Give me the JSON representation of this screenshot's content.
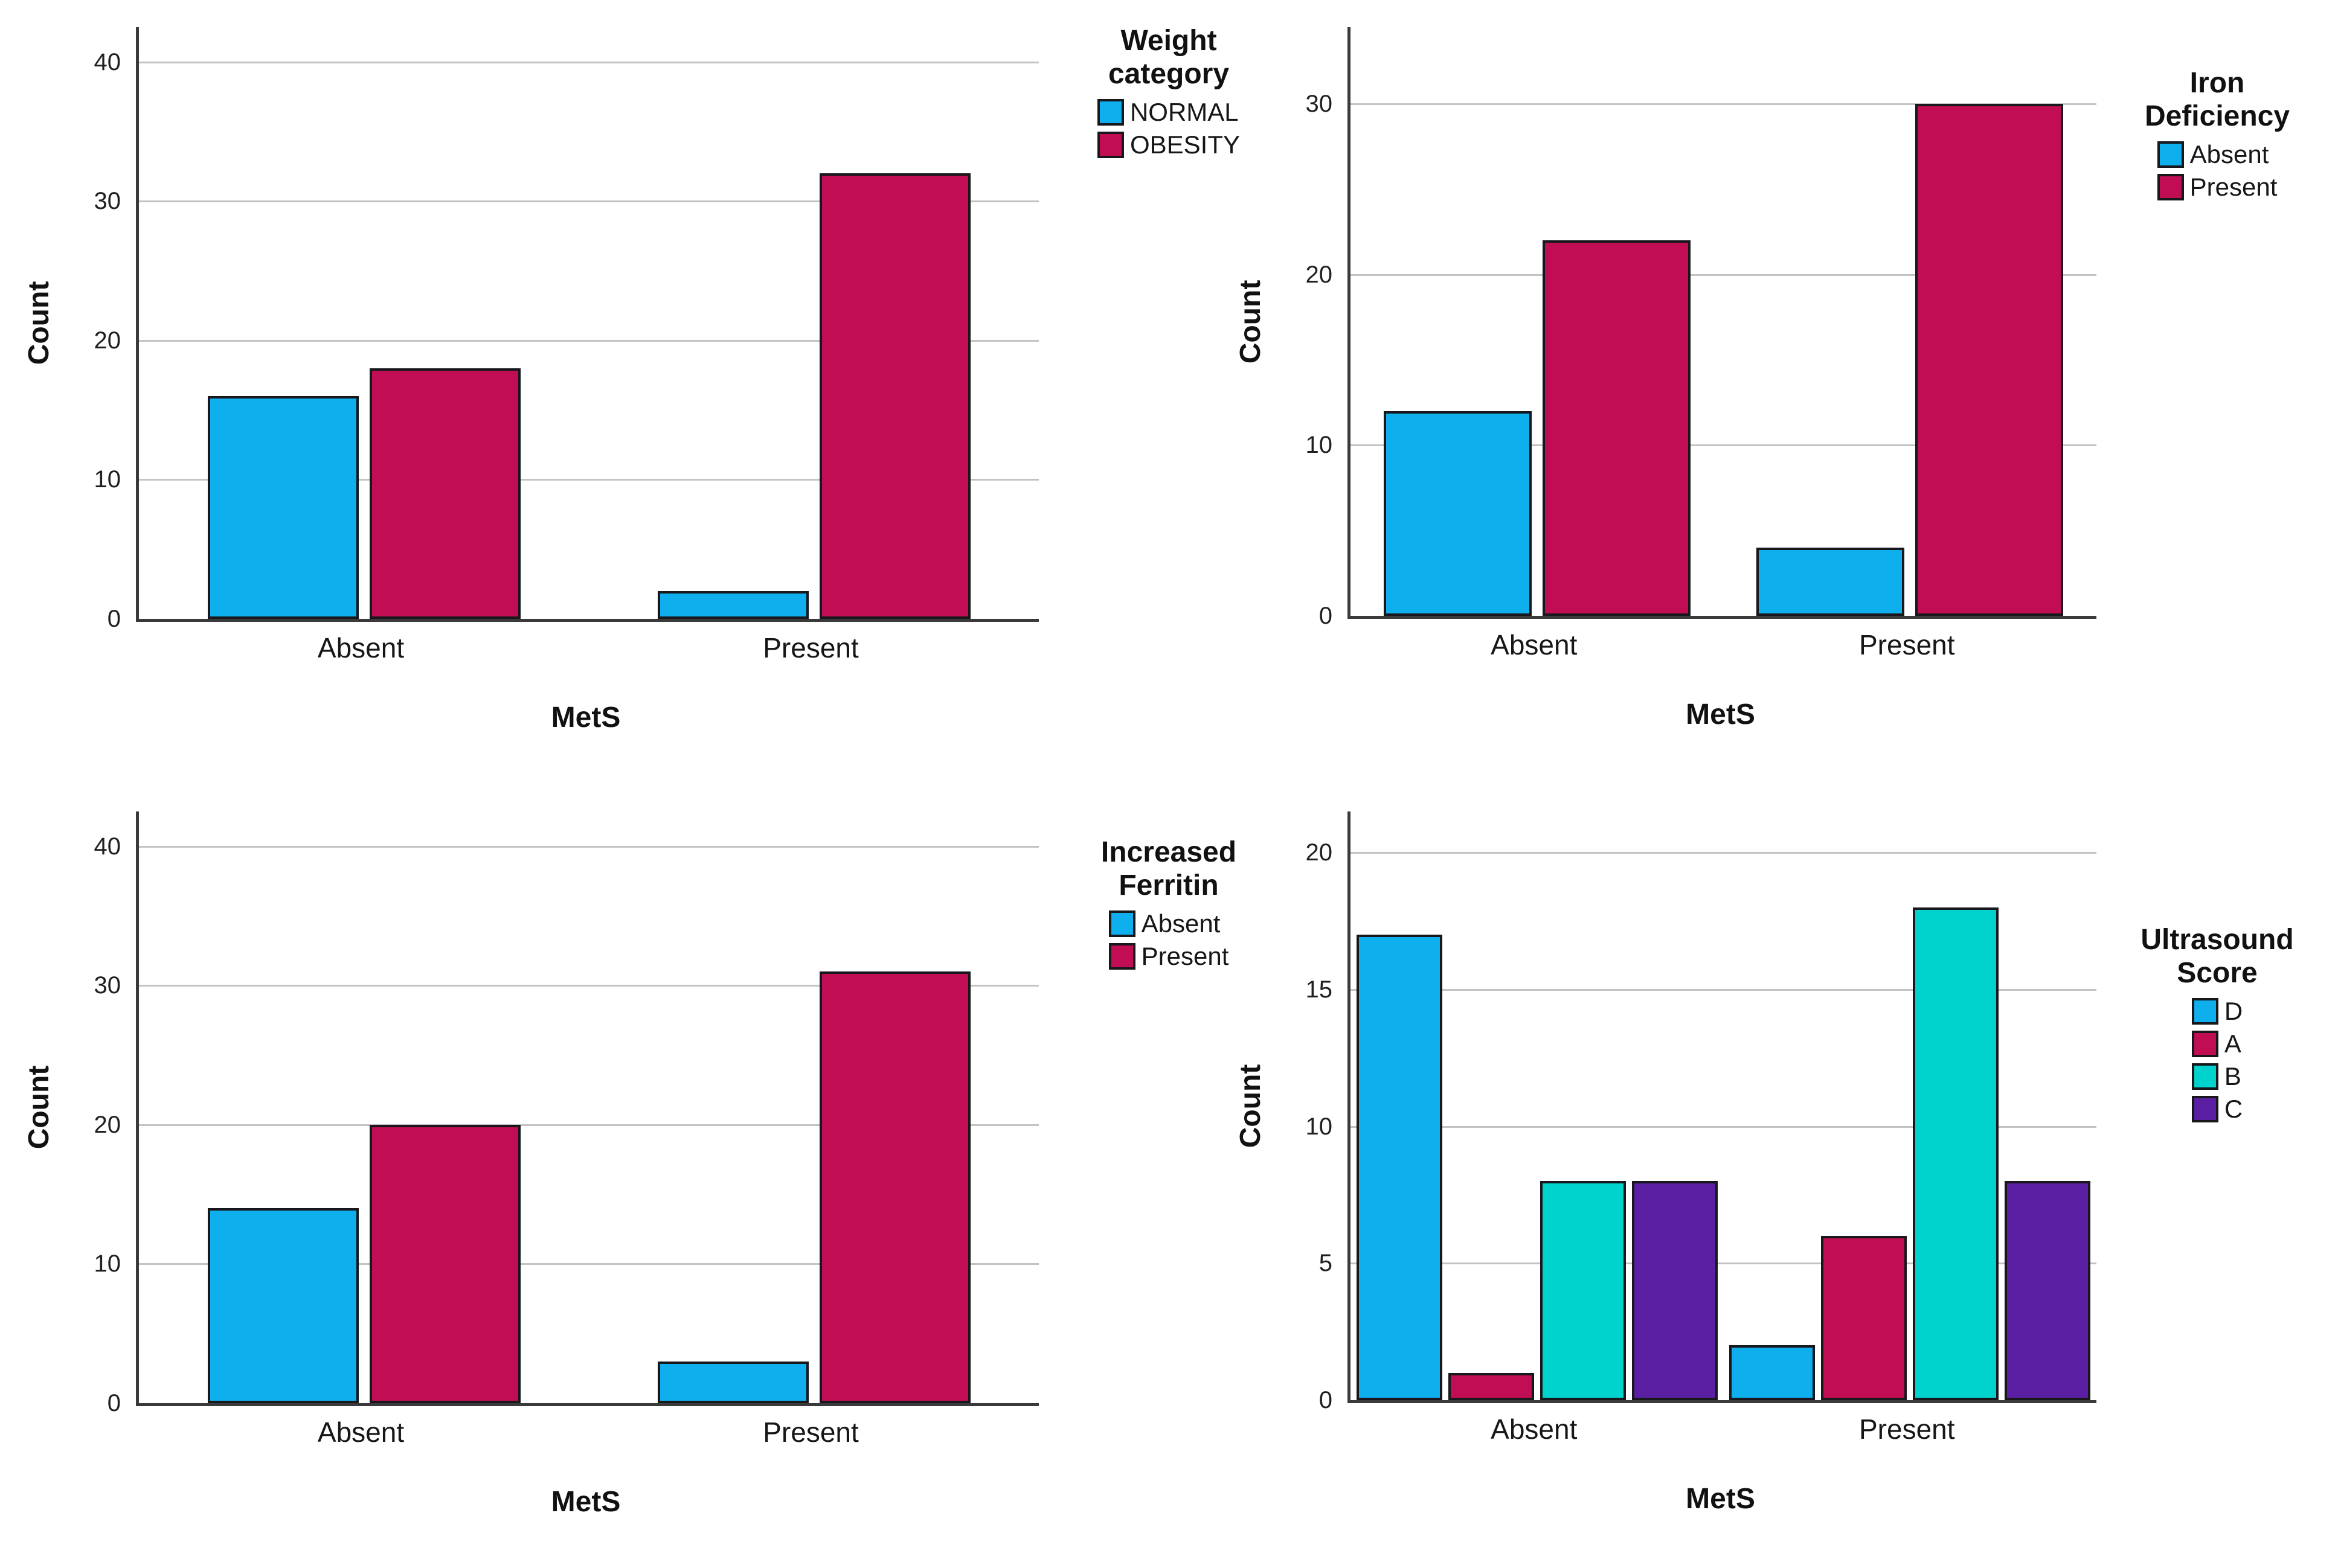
{
  "chart_data": [
    {
      "type": "bar",
      "title": "",
      "legend_title_lines": [
        "Weight",
        "category"
      ],
      "legend_position": "right",
      "xlabel": "MetS",
      "ylabel": "Count",
      "categories": [
        "Absent",
        "Present"
      ],
      "y_ticks": [
        0,
        10,
        20,
        30,
        40
      ],
      "ylim": [
        0,
        42.5
      ],
      "grid": true,
      "series": [
        {
          "name": "NORMAL",
          "color": "#0FAEEC",
          "values": [
            16,
            2
          ]
        },
        {
          "name": "OBESITY",
          "color": "#C10D53",
          "values": [
            18,
            32
          ]
        }
      ]
    },
    {
      "type": "bar",
      "title": "",
      "legend_title_lines": [
        "Iron",
        "Deficiency"
      ],
      "legend_position": "right",
      "xlabel": "MetS",
      "ylabel": "Count",
      "categories": [
        "Absent",
        "Present"
      ],
      "y_ticks": [
        0,
        10,
        20,
        30
      ],
      "ylim": [
        0,
        34.5
      ],
      "grid": true,
      "series": [
        {
          "name": "Absent",
          "color": "#0FAEEC",
          "values": [
            12,
            4
          ]
        },
        {
          "name": "Present",
          "color": "#C10D53",
          "values": [
            22,
            30
          ]
        }
      ]
    },
    {
      "type": "bar",
      "title": "",
      "legend_title_lines": [
        "Increased",
        "Ferritin"
      ],
      "legend_position": "right",
      "xlabel": "MetS",
      "ylabel": "Count",
      "categories": [
        "Absent",
        "Present"
      ],
      "y_ticks": [
        0,
        10,
        20,
        30,
        40
      ],
      "ylim": [
        0,
        42.5
      ],
      "grid": true,
      "series": [
        {
          "name": "Absent",
          "color": "#0FAEEC",
          "values": [
            14,
            3
          ]
        },
        {
          "name": "Present",
          "color": "#C10D53",
          "values": [
            20,
            31
          ]
        }
      ]
    },
    {
      "type": "bar",
      "title": "",
      "legend_title_lines": [
        "Ultrasound",
        "Score"
      ],
      "legend_position": "right",
      "xlabel": "MetS",
      "ylabel": "Count",
      "categories": [
        "Absent",
        "Present"
      ],
      "y_ticks": [
        0,
        5,
        10,
        15,
        20
      ],
      "ylim": [
        0,
        21.5
      ],
      "grid": true,
      "series": [
        {
          "name": "D",
          "color": "#0FAEEC",
          "values": [
            17,
            2
          ]
        },
        {
          "name": "A",
          "color": "#C10D53",
          "values": [
            1,
            6
          ]
        },
        {
          "name": "B",
          "color": "#00D2CE",
          "values": [
            8,
            18
          ]
        },
        {
          "name": "C",
          "color": "#5A1FA2",
          "values": [
            8,
            8
          ]
        }
      ]
    }
  ]
}
